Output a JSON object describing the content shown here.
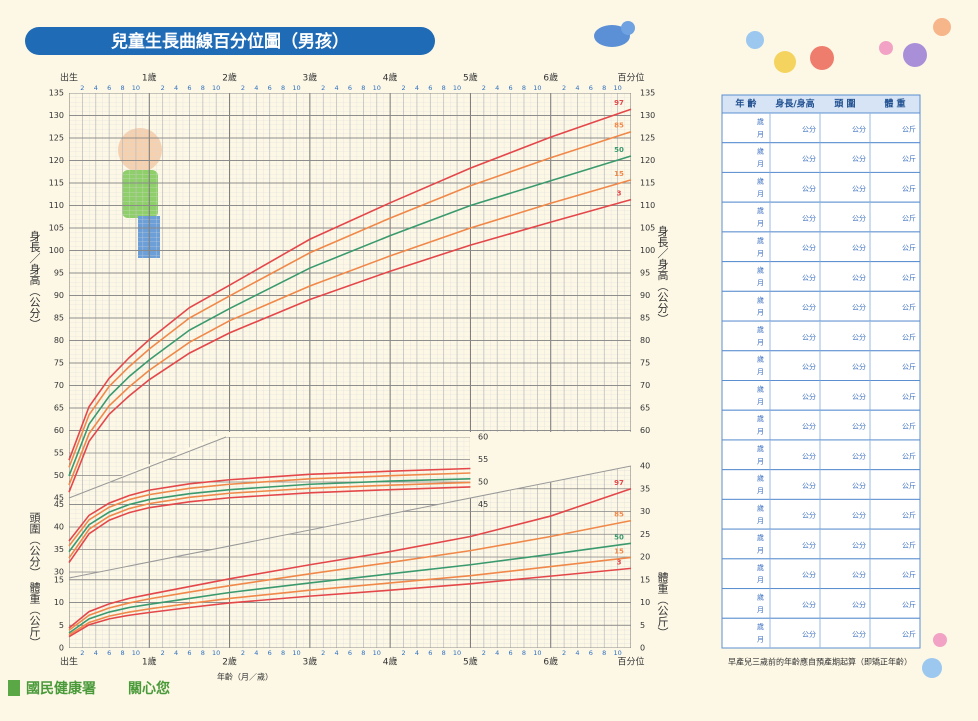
{
  "header": {
    "title": "兒童生長曲線百分位圖（男孩）"
  },
  "chart_data": [
    {
      "type": "line",
      "ylabel": "身長／身高（公分）",
      "xlim": [
        0,
        84
      ],
      "ylim": [
        45,
        135
      ],
      "y2lim": [
        45,
        135
      ],
      "yticks": [
        45,
        50,
        55,
        60,
        65,
        70,
        75,
        80,
        85,
        90,
        95,
        100,
        105,
        110,
        115,
        120,
        125,
        130,
        135
      ],
      "y2ticks": [
        60,
        65,
        70,
        75,
        80,
        85,
        90,
        95,
        100,
        105,
        110,
        115,
        120,
        125,
        130,
        135
      ],
      "xticks": [
        {
          "value": 0,
          "label": "出生"
        },
        {
          "value": 12,
          "label": "1歲"
        },
        {
          "value": 24,
          "label": "2歲"
        },
        {
          "value": 36,
          "label": "3歲"
        },
        {
          "value": 48,
          "label": "4歲"
        },
        {
          "value": 60,
          "label": "5歲"
        },
        {
          "value": 72,
          "label": "6歲"
        },
        {
          "value": 84,
          "label": "百分位"
        }
      ],
      "minor_xticks": [
        {
          "value": 2,
          "label": "2"
        },
        {
          "value": 4,
          "label": "4"
        },
        {
          "value": 6,
          "label": "6"
        },
        {
          "value": 8,
          "label": "8"
        },
        {
          "value": 10,
          "label": "10"
        },
        {
          "value": 14,
          "label": "2"
        },
        {
          "value": 16,
          "label": "4"
        },
        {
          "value": 18,
          "label": "6"
        },
        {
          "value": 20,
          "label": "8"
        },
        {
          "value": 22,
          "label": "10"
        },
        {
          "value": 26,
          "label": "2"
        },
        {
          "value": 28,
          "label": "4"
        },
        {
          "value": 30,
          "label": "6"
        },
        {
          "value": 32,
          "label": "8"
        },
        {
          "value": 34,
          "label": "10"
        },
        {
          "value": 38,
          "label": "2"
        },
        {
          "value": 40,
          "label": "4"
        },
        {
          "value": 42,
          "label": "6"
        },
        {
          "value": 44,
          "label": "8"
        },
        {
          "value": 46,
          "label": "10"
        },
        {
          "value": 50,
          "label": "2"
        },
        {
          "value": 52,
          "label": "4"
        },
        {
          "value": 54,
          "label": "6"
        },
        {
          "value": 56,
          "label": "8"
        },
        {
          "value": 58,
          "label": "10"
        },
        {
          "value": 62,
          "label": "2"
        },
        {
          "value": 64,
          "label": "4"
        },
        {
          "value": 66,
          "label": "6"
        },
        {
          "value": 68,
          "label": "8"
        },
        {
          "value": 70,
          "label": "10"
        },
        {
          "value": 74,
          "label": "2"
        },
        {
          "value": 76,
          "label": "4"
        },
        {
          "value": 78,
          "label": "6"
        },
        {
          "value": 80,
          "label": "8"
        },
        {
          "value": 82,
          "label": "10"
        }
      ],
      "grid": true,
      "x": [
        0,
        3,
        6,
        9,
        12,
        18,
        24,
        36,
        48,
        60,
        72,
        84
      ],
      "series": [
        {
          "name": "97",
          "color": "#e4474a",
          "values": [
            53.4,
            65.3,
            71.6,
            76.2,
            80.2,
            87.3,
            92.3,
            102.5,
            110.6,
            118.3,
            125.2,
            131.4
          ]
        },
        {
          "name": "85",
          "color": "#f0884a",
          "values": [
            51.8,
            63.5,
            69.8,
            74.2,
            78.1,
            85,
            89.9,
            99.5,
            107.2,
            114.4,
            120.6,
            126.4
          ]
        },
        {
          "name": "50",
          "color": "#3a9a6e",
          "values": [
            49.9,
            61.4,
            67.6,
            72,
            75.7,
            82.3,
            87.1,
            96.1,
            103.3,
            110,
            115.5,
            121
          ]
        },
        {
          "name": "15",
          "color": "#f0884a",
          "values": [
            47.9,
            59.3,
            65.5,
            69.7,
            73.4,
            79.6,
            84.4,
            92.1,
            98.8,
            105,
            110.5,
            115.7
          ]
        },
        {
          "name": "3",
          "color": "#e4474a",
          "values": [
            46.3,
            57.6,
            63.6,
            67.7,
            71.3,
            77.2,
            81.7,
            89.1,
            95.4,
            101.2,
            106.3,
            111.3
          ]
        }
      ]
    },
    {
      "type": "line",
      "ylabel": "頭圍（公分）",
      "xlim": [
        0,
        84
      ],
      "ylim": [
        30,
        60
      ],
      "y2lim": [
        30,
        60
      ],
      "yticks": [
        30,
        35,
        40,
        45
      ],
      "y2ticks": [
        45,
        50,
        55,
        60
      ],
      "grid": true,
      "x": [
        0,
        3,
        6,
        9,
        12,
        18,
        24,
        36,
        48,
        60
      ],
      "series": [
        {
          "color": "#e4474a",
          "values": [
            36.9,
            42.6,
            45.3,
            47,
            48.2,
            49.6,
            50.5,
            51.7,
            52.4,
            53
          ]
        },
        {
          "color": "#f0884a",
          "values": [
            35.8,
            41.6,
            44.4,
            46.1,
            47.2,
            48.6,
            49.5,
            50.7,
            51.4,
            52
          ]
        },
        {
          "color": "#3a9a6e",
          "values": [
            34.5,
            40.5,
            43.3,
            45,
            46.1,
            47.4,
            48.3,
            49.5,
            50.2,
            50.7
          ]
        },
        {
          "color": "#f0884a",
          "values": [
            33.1,
            39.5,
            42.4,
            44.1,
            45.2,
            46.6,
            47.5,
            48.6,
            49.3,
            49.9
          ]
        },
        {
          "color": "#e4474a",
          "values": [
            32.1,
            38.5,
            41.5,
            43.2,
            44.3,
            45.6,
            46.5,
            47.6,
            48.3,
            48.9
          ]
        }
      ]
    },
    {
      "type": "line",
      "ylabel": "體重（公斤）",
      "xlabel": "年齡（月／歲）",
      "xlim": [
        0,
        84
      ],
      "ylim": [
        0,
        40
      ],
      "y2lim": [
        0,
        40
      ],
      "yticks": [
        0,
        5,
        10,
        15
      ],
      "y2ticks": [
        0,
        5,
        10,
        15,
        20,
        25,
        30,
        35,
        40
      ],
      "grid": true,
      "x": [
        0,
        3,
        6,
        9,
        12,
        18,
        24,
        36,
        48,
        60,
        72,
        84
      ],
      "series": [
        {
          "name": "97",
          "color": "#e4474a",
          "values": [
            4.4,
            8.0,
            9.7,
            10.9,
            11.8,
            13.5,
            15.2,
            18.3,
            21.2,
            24.5,
            29,
            35
          ]
        },
        {
          "name": "85",
          "color": "#f0884a",
          "values": [
            3.9,
            7.2,
            8.8,
            9.9,
            10.8,
            12.3,
            13.7,
            16.3,
            18.8,
            21.4,
            24.5,
            28
          ]
        },
        {
          "name": "50",
          "color": "#3a9a6e",
          "values": [
            3.3,
            6.4,
            7.9,
            8.9,
            9.6,
            10.9,
            12.2,
            14.3,
            16.3,
            18.3,
            20.6,
            23.0
          ]
        },
        {
          "name": "15",
          "color": "#f0884a",
          "values": [
            2.9,
            5.6,
            7.0,
            7.9,
            8.6,
            9.8,
            10.9,
            12.7,
            14.3,
            15.9,
            17.9,
            19.9
          ]
        },
        {
          "name": "3",
          "color": "#e4474a",
          "values": [
            2.5,
            5.1,
            6.4,
            7.2,
            7.8,
            8.9,
            9.9,
            11.4,
            12.7,
            14.1,
            15.8,
            17.5
          ]
        }
      ]
    }
  ],
  "table": {
    "columns": [
      "年 齡",
      "身長/身高",
      "頭 圍",
      "體 重"
    ],
    "rows": [
      [
        "歲",
        "月",
        "公分",
        "公分",
        "公斤"
      ],
      [
        "歲",
        "月",
        "公分",
        "公分",
        "公斤"
      ],
      [
        "歲",
        "月",
        "公分",
        "公分",
        "公斤"
      ],
      [
        "歲",
        "月",
        "公分",
        "公分",
        "公斤"
      ],
      [
        "歲",
        "月",
        "公分",
        "公分",
        "公斤"
      ],
      [
        "歲",
        "月",
        "公分",
        "公分",
        "公斤"
      ],
      [
        "歲",
        "月",
        "公分",
        "公分",
        "公斤"
      ],
      [
        "歲",
        "月",
        "公分",
        "公分",
        "公斤"
      ],
      [
        "歲",
        "月",
        "公分",
        "公分",
        "公斤"
      ],
      [
        "歲",
        "月",
        "公分",
        "公分",
        "公斤"
      ],
      [
        "歲",
        "月",
        "公分",
        "公分",
        "公斤"
      ],
      [
        "歲",
        "月",
        "公分",
        "公分",
        "公斤"
      ],
      [
        "歲",
        "月",
        "公分",
        "公分",
        "公斤"
      ],
      [
        "歲",
        "月",
        "公分",
        "公分",
        "公斤"
      ],
      [
        "歲",
        "月",
        "公分",
        "公分",
        "公斤"
      ],
      [
        "歲",
        "月",
        "公分",
        "公分",
        "公斤"
      ],
      [
        "歲",
        "月",
        "公分",
        "公分",
        "公斤"
      ],
      [
        "歲",
        "月",
        "公分",
        "公分",
        "公斤"
      ]
    ],
    "note": "早產兒三歲前的年齡應自預產期起算（即矯正年齡）"
  },
  "footer": {
    "org": "國民健康署",
    "slogan": "關心您"
  }
}
